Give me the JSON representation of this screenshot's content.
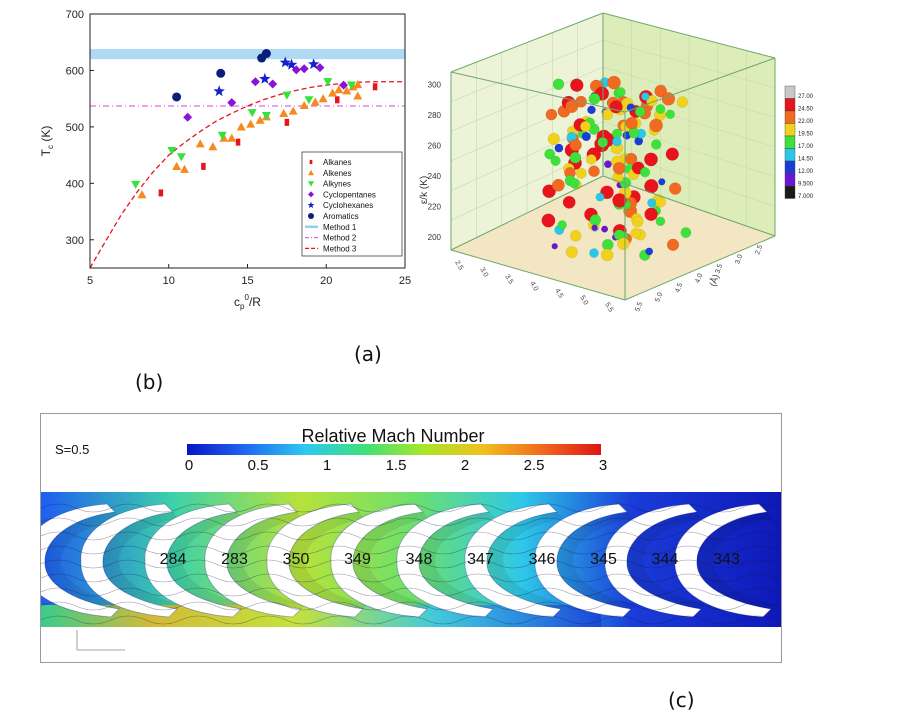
{
  "captions": {
    "a": "(a)",
    "b": "(b)",
    "c": "(c)"
  },
  "chart_data": [
    {
      "type": "scatter",
      "ylabel_main": "T",
      "ylabel_sub": "c",
      "ylabel_unit": "(K)",
      "xlabel_main": "c",
      "xlabel_sub": "p",
      "xlabel_sup": "0",
      "xlabel_tail": "/R",
      "xlim": [
        5,
        25
      ],
      "ylim": [
        250,
        700
      ],
      "xticks": [
        "5",
        "10",
        "15",
        "20",
        "25"
      ],
      "yticks": [
        "300",
        "400",
        "500",
        "600",
        "700"
      ],
      "legend_position": "bottom-right",
      "colors": {
        "alkanes": "#e8141c",
        "alkenes": "#f7891f",
        "alkynes": "#33e33a",
        "cyclopentanes": "#8a14d6",
        "cyclohexanes": "#1322cc",
        "aromatics": "#0b1e7c",
        "method1": "#93cdf0",
        "method2": "#e06be0",
        "method3": "#e8141c"
      },
      "band_method1": [
        620,
        638
      ],
      "method2_y": 537,
      "method3_curve": [
        [
          5,
          250
        ],
        [
          6,
          298
        ],
        [
          7,
          345
        ],
        [
          8,
          385
        ],
        [
          9,
          420
        ],
        [
          10,
          450
        ],
        [
          11,
          472
        ],
        [
          12,
          492
        ],
        [
          13,
          510
        ],
        [
          14,
          524
        ],
        [
          15,
          537
        ],
        [
          16,
          548
        ],
        [
          17,
          557
        ],
        [
          18,
          564
        ],
        [
          19,
          570
        ],
        [
          20,
          574
        ],
        [
          21,
          577
        ],
        [
          22,
          579
        ],
        [
          23,
          580
        ],
        [
          24,
          580
        ],
        [
          25,
          580
        ]
      ],
      "series": [
        {
          "name": "Alkanes",
          "marker": "square",
          "color": "#e8141c",
          "points": [
            [
              9.5,
              383
            ],
            [
              12.2,
              430
            ],
            [
              14.4,
              473
            ],
            [
              17.5,
              508
            ],
            [
              20.7,
              548
            ],
            [
              23.1,
              571
            ]
          ]
        },
        {
          "name": "Alkenes",
          "marker": "triangle",
          "color": "#f7891f",
          "points": [
            [
              8.3,
              380
            ],
            [
              10.5,
              430
            ],
            [
              11.0,
              425
            ],
            [
              12.0,
              470
            ],
            [
              12.8,
              465
            ],
            [
              13.5,
              480
            ],
            [
              14.0,
              480
            ],
            [
              14.6,
              500
            ],
            [
              15.2,
              505
            ],
            [
              15.8,
              512
            ],
            [
              16.2,
              518
            ],
            [
              17.3,
              524
            ],
            [
              17.9,
              528
            ],
            [
              18.6,
              538
            ],
            [
              19.3,
              544
            ],
            [
              19.8,
              550
            ],
            [
              20.4,
              560
            ],
            [
              20.8,
              566
            ],
            [
              21.3,
              564
            ],
            [
              21.7,
              571
            ],
            [
              22.0,
              575
            ],
            [
              22.0,
              555
            ]
          ]
        },
        {
          "name": "Alkynes",
          "marker": "triangle-down",
          "color": "#33e33a",
          "points": [
            [
              7.9,
              398
            ],
            [
              10.2,
              458
            ],
            [
              10.8,
              447
            ],
            [
              13.4,
              485
            ],
            [
              15.3,
              525
            ],
            [
              16.2,
              520
            ],
            [
              17.5,
              556
            ],
            [
              18.9,
              548
            ],
            [
              20.1,
              580
            ],
            [
              21.6,
              574
            ]
          ]
        },
        {
          "name": "Cyclopentanes",
          "marker": "diamond",
          "color": "#8a14d6",
          "points": [
            [
              11.2,
              517
            ],
            [
              14.0,
              543
            ],
            [
              15.5,
              580
            ],
            [
              16.6,
              576
            ],
            [
              18.1,
              601
            ],
            [
              18.6,
              603
            ],
            [
              19.6,
              605
            ],
            [
              21.1,
              574
            ]
          ]
        },
        {
          "name": "Cyclohexanes",
          "marker": "star",
          "color": "#1322cc",
          "points": [
            [
              13.2,
              563
            ],
            [
              16.1,
              585
            ],
            [
              17.4,
              614
            ],
            [
              17.8,
              610
            ],
            [
              19.2,
              611
            ]
          ]
        },
        {
          "name": "Aromatics",
          "marker": "circle",
          "color": "#0b1e7c",
          "points": [
            [
              10.5,
              553
            ],
            [
              13.3,
              595
            ],
            [
              16.2,
              630
            ],
            [
              15.9,
              622
            ]
          ]
        }
      ],
      "legend": [
        "Alkanes",
        "Alkenes",
        "Alkynes",
        "Cyclopentanes",
        "Cyclohexanes",
        "Aromatics",
        "Method 1",
        "Method 2",
        "Method 3"
      ]
    },
    {
      "type": "scatter",
      "dimensions": 3,
      "zlabel": "ε/k (K)",
      "y_axis_label": "(Å)",
      "zlim": [
        190,
        305
      ],
      "zticks": [
        "200",
        "220",
        "240",
        "260",
        "280",
        "300"
      ],
      "x_ticks": [
        "2.5",
        "3.0",
        "3.5",
        "4.0",
        "4.5",
        "5.0",
        "5.5"
      ],
      "y_ticks": [
        "5.5",
        "5.0",
        "4.5",
        "4.0",
        "3.5",
        "3.0",
        "2.5"
      ],
      "colorbar_ticks": [
        "27.00",
        "24.50",
        "22.00",
        "19.50",
        "17.00",
        "14.50",
        "12.00",
        "9.500",
        "7.000"
      ],
      "colorbar_colors": [
        "#c8c8c8",
        "#e8141c",
        "#f06a22",
        "#f0d21e",
        "#3ee03a",
        "#28c8e6",
        "#1a3cd8",
        "#6c16d2",
        "#1a1a1a"
      ],
      "scene_colors": {
        "back_wall": "#ecf3d6",
        "side_wall": "#d9ebb2",
        "floor": "#f3e6c2",
        "frame": "#6aa86a"
      }
    },
    {
      "type": "heatmap",
      "label_s": "S=0.5",
      "colorbar_title": "Relative Mach Number",
      "colorbar_ticks": [
        "0",
        "0.5",
        "1",
        "1.5",
        "2",
        "2.5",
        "3"
      ],
      "colorbar_gradient": [
        "#0a14c8",
        "#1e6af0",
        "#2ec8f0",
        "#3ee07a",
        "#a8e628",
        "#f0c01e",
        "#f06a1e",
        "#e01414"
      ],
      "blade_labels": [
        "284",
        "283",
        "350",
        "349",
        "348",
        "347",
        "346",
        "345",
        "344",
        "343"
      ]
    }
  ]
}
